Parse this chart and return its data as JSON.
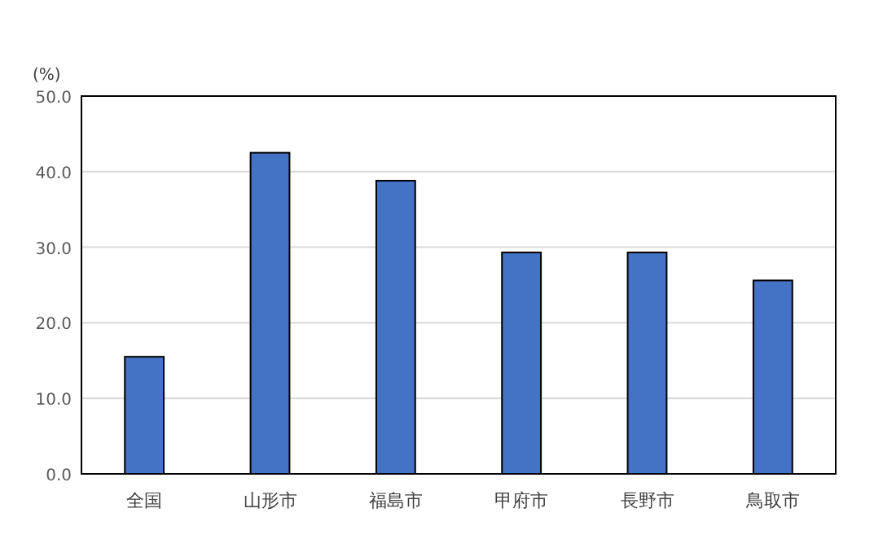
{
  "chart_data": {
    "type": "bar",
    "ylabel": "(%)",
    "categories": [
      "全国",
      "山形市",
      "福島市",
      "甲府市",
      "長野市",
      "鳥取市"
    ],
    "values": [
      15.5,
      42.5,
      38.8,
      29.3,
      29.3,
      25.6
    ],
    "color": "#4472c4",
    "ylim": [
      0,
      50
    ],
    "yticks": [
      {
        "value": 0,
        "label": "0.0"
      },
      {
        "value": 10,
        "label": "10.0"
      },
      {
        "value": 20,
        "label": "20.0"
      },
      {
        "value": 30,
        "label": "30.0"
      },
      {
        "value": 40,
        "label": "40.0"
      },
      {
        "value": 50,
        "label": "50.0"
      }
    ],
    "grid": "y"
  }
}
